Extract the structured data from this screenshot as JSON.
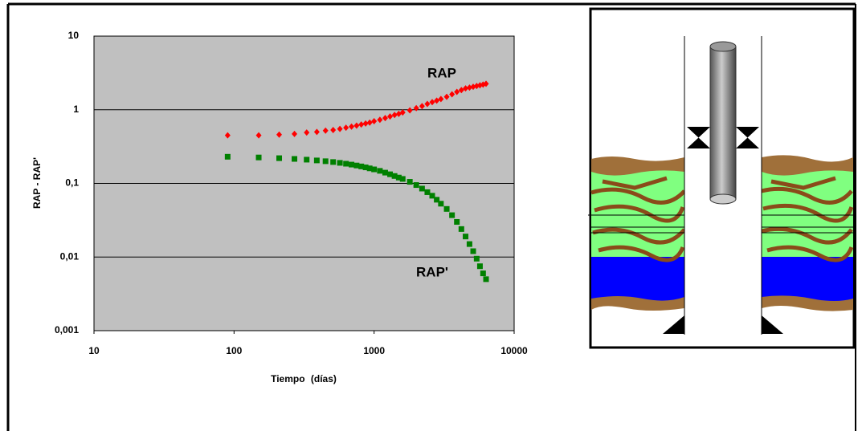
{
  "chart_data": {
    "type": "scatter",
    "xlabel": "Tiempo (días)",
    "ylabel": "RAP - RAP'",
    "xscale": "log",
    "yscale": "log",
    "grid": true,
    "background": "#c0c0c0",
    "xlim": [
      10,
      10000
    ],
    "xticks": [
      10,
      100,
      1000,
      10000
    ],
    "ylim": [
      0.001,
      10
    ],
    "yticks": [
      {
        "value": 0.001,
        "label": "0,001"
      },
      {
        "value": 0.01,
        "label": "0,01"
      },
      {
        "value": 0.1,
        "label": "0,1"
      },
      1,
      10
    ],
    "x": [
      90,
      150,
      210,
      270,
      330,
      390,
      450,
      510,
      570,
      630,
      690,
      750,
      810,
      870,
      930,
      1000,
      1100,
      1200,
      1300,
      1400,
      1500,
      1600,
      1800,
      2000,
      2200,
      2400,
      2600,
      2800,
      3000,
      3300,
      3600,
      3900,
      4200,
      4500,
      4800,
      5100,
      5400,
      5700,
      6000,
      6300
    ],
    "series": [
      {
        "name": "RAP",
        "color": "#ff0000",
        "marker": "diamond",
        "values": [
          0.45,
          0.45,
          0.46,
          0.47,
          0.49,
          0.5,
          0.52,
          0.53,
          0.55,
          0.57,
          0.59,
          0.61,
          0.63,
          0.65,
          0.67,
          0.7,
          0.73,
          0.77,
          0.81,
          0.85,
          0.88,
          0.92,
          0.98,
          1.05,
          1.12,
          1.2,
          1.27,
          1.33,
          1.4,
          1.5,
          1.62,
          1.75,
          1.85,
          1.95,
          2.0,
          2.05,
          2.1,
          2.15,
          2.2,
          2.25
        ]
      },
      {
        "name": "RAP'",
        "color": "#008000",
        "marker": "square",
        "values": [
          0.23,
          0.225,
          0.22,
          0.215,
          0.21,
          0.205,
          0.2,
          0.195,
          0.19,
          0.185,
          0.18,
          0.175,
          0.17,
          0.165,
          0.16,
          0.155,
          0.148,
          0.14,
          0.133,
          0.126,
          0.12,
          0.115,
          0.105,
          0.095,
          0.085,
          0.076,
          0.068,
          0.06,
          0.053,
          0.045,
          0.037,
          0.03,
          0.024,
          0.019,
          0.015,
          0.012,
          0.0095,
          0.0075,
          0.006,
          0.005
        ]
      }
    ]
  }
}
